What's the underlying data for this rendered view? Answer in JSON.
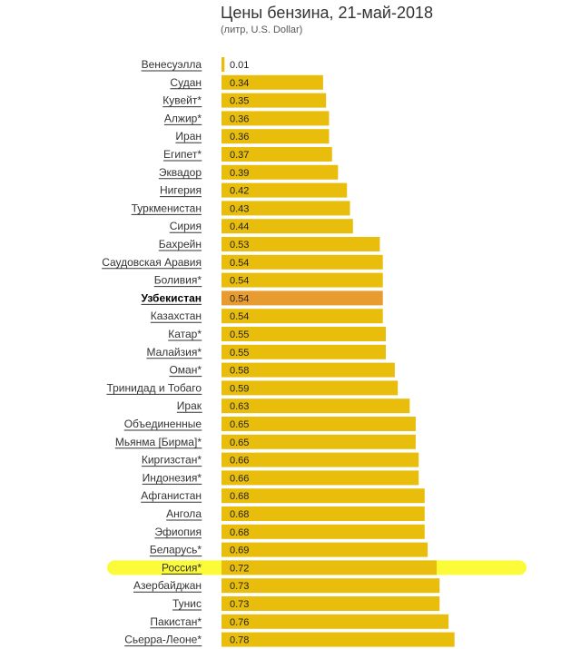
{
  "chart_data": {
    "type": "bar",
    "orientation": "horizontal",
    "title": "Цены бензина, 21-май-2018",
    "subtitle": "(литр, U.S. Dollar)",
    "xlim": [
      0,
      1.1
    ],
    "grid": false,
    "categories": [
      "Венесуэлла",
      "Судан",
      "Кувейт*",
      "Алжир*",
      "Иран",
      "Египет*",
      "Эквадор",
      "Нигерия",
      "Туркменистан",
      "Сирия",
      "Бахрейн",
      "Саудовская Аравия",
      "Боливия*",
      "Узбекистан",
      "Казахстан",
      "Катар*",
      "Малайзия*",
      "Оман*",
      "Тринидад и Тобаго",
      "Ирак",
      "Объединенные",
      "Мьянма [Бирма]*",
      "Киргизстан*",
      "Индонезия*",
      "Афганистан",
      "Ангола",
      "Эфиопия",
      "Беларусь*",
      "Россия*",
      "Азербайджан",
      "Тунис",
      "Пакистан*",
      "Сьерра-Леоне*"
    ],
    "values": [
      0.01,
      0.34,
      0.35,
      0.36,
      0.36,
      0.37,
      0.39,
      0.42,
      0.43,
      0.44,
      0.53,
      0.54,
      0.54,
      0.54,
      0.54,
      0.55,
      0.55,
      0.58,
      0.59,
      0.63,
      0.65,
      0.65,
      0.66,
      0.66,
      0.68,
      0.68,
      0.68,
      0.69,
      0.72,
      0.73,
      0.73,
      0.76,
      0.78
    ],
    "value_labels": [
      "0.01",
      "0.34",
      "0.35",
      "0.36",
      "0.36",
      "0.37",
      "0.39",
      "0.42",
      "0.43",
      "0.44",
      "0.53",
      "0.54",
      "0.54",
      "0.54",
      "0.54",
      "0.55",
      "0.55",
      "0.58",
      "0.59",
      "0.63",
      "0.65",
      "0.65",
      "0.66",
      "0.66",
      "0.68",
      "0.68",
      "0.68",
      "0.69",
      "0.72",
      "0.73",
      "0.73",
      "0.76",
      "0.78"
    ],
    "highlighted_category": "Узбекистан",
    "marked_category": "Россия*",
    "colors": {
      "bar": "#e8bd0c",
      "bar_highlight": "#e89c30",
      "marker": "#fbfb3a"
    }
  }
}
